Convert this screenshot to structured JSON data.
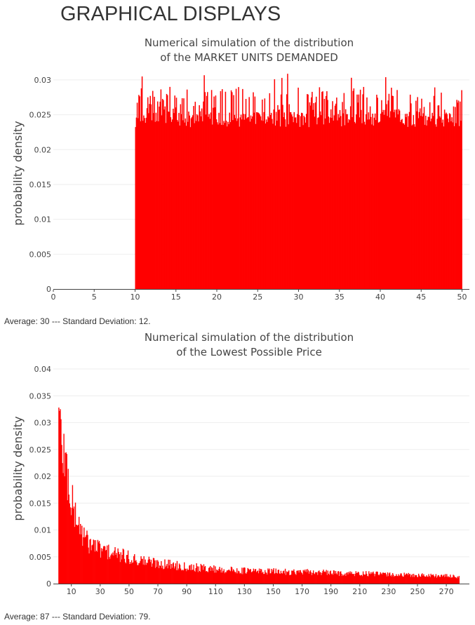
{
  "page": {
    "heading": "GRAPHICAL DISPLAYS"
  },
  "colors": {
    "bar": "#ff0000",
    "grid": "#eeeeee",
    "axis": "#444444",
    "text": "#444444"
  },
  "chart_data": [
    {
      "type": "bar",
      "title_line1": "Numerical simulation of the distribution",
      "title_line2": "of the MARKET UNITS DEMANDED",
      "ylabel": "probability density",
      "xlim": [
        0,
        50.9
      ],
      "ylim": [
        0,
        0.031
      ],
      "xticks": [
        0,
        5,
        10,
        15,
        20,
        25,
        30,
        35,
        40,
        45,
        50
      ],
      "xtick_labels": [
        "0",
        "5",
        "10",
        "15",
        "20",
        "25",
        "30",
        "35",
        "40",
        "45",
        "50"
      ],
      "yticks": [
        0,
        0.005,
        0.01,
        0.015,
        0.02,
        0.025,
        0.03
      ],
      "ytick_labels": [
        "0",
        "0.005",
        "0.01",
        "0.015",
        "0.02",
        "0.025",
        "0.03"
      ],
      "grid": true,
      "distribution": "uniform",
      "bin_width": 0.1,
      "support": [
        10,
        50
      ],
      "density_level": 0.025,
      "density_peak": 0.031,
      "summary": "Average: 30 --- Standard Deviation: 12."
    },
    {
      "type": "bar",
      "title_line1": "Numerical simulation of the distribution",
      "title_line2": "of the Lowest Possible Price",
      "ylabel": "probability density",
      "xlim": [
        -2.5,
        286
      ],
      "ylim": [
        0,
        0.04
      ],
      "xticks": [
        10,
        30,
        50,
        70,
        90,
        110,
        130,
        150,
        170,
        190,
        210,
        230,
        250,
        270
      ],
      "xtick_labels": [
        "10",
        "30",
        "50",
        "70",
        "90",
        "110",
        "130",
        "150",
        "170",
        "190",
        "210",
        "230",
        "250",
        "270"
      ],
      "yticks": [
        0,
        0.005,
        0.01,
        0.015,
        0.02,
        0.025,
        0.03,
        0.035,
        0.04
      ],
      "ytick_labels": [
        "0",
        "0.005",
        "0.01",
        "0.015",
        "0.02",
        "0.025",
        "0.03",
        "0.035",
        "0.04"
      ],
      "grid": true,
      "distribution": "right-skewed",
      "bin_width": 0.5,
      "support": [
        1,
        279
      ],
      "density_peak": 0.033,
      "density_profile_x": [
        1,
        5,
        10,
        15,
        20,
        30,
        40,
        50,
        60,
        70,
        80,
        90,
        100,
        120,
        140,
        160,
        180,
        200,
        220,
        240,
        260,
        279
      ],
      "density_profile_y": [
        0.03,
        0.024,
        0.015,
        0.011,
        0.008,
        0.0064,
        0.0055,
        0.0048,
        0.0042,
        0.0038,
        0.0035,
        0.0032,
        0.0029,
        0.0025,
        0.0023,
        0.0022,
        0.0021,
        0.0019,
        0.0018,
        0.0016,
        0.0015,
        0.0013
      ],
      "summary": "Average: 87 --- Standard Deviation: 79."
    }
  ]
}
